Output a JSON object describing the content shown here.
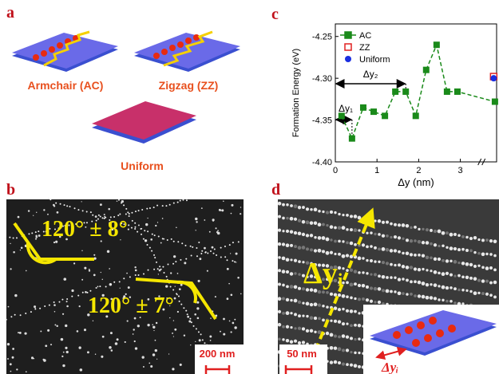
{
  "panels": {
    "a": {
      "label": "a",
      "items": [
        "Armchair (AC)",
        "Zigzag (ZZ)",
        "Uniform"
      ]
    },
    "b": {
      "label": "b",
      "angles": [
        "120° ± 8°",
        "120° ± 7°"
      ],
      "scale_bar": "200 nm"
    },
    "c": {
      "label": "c"
    },
    "d": {
      "label": "d",
      "spacing_main": "Δyᵢ",
      "scale_bar": "50 nm",
      "spacing_inset": "Δyᵢ"
    }
  },
  "chart_data": {
    "type": "line",
    "ylabel": "Formation Energy (eV)",
    "xlabel": "Δy (nm)",
    "xlim": [
      0,
      3.87
    ],
    "ylim": [
      -4.4,
      -4.235
    ],
    "xticks": [
      0,
      1,
      2,
      3
    ],
    "yticks": [
      {
        "value": -4.4,
        "label": "-4.40"
      },
      -4.35,
      {
        "value": -4.3,
        "label": "-4.30"
      },
      -4.25
    ],
    "annotations": [
      "Δy₁",
      "Δy₂"
    ],
    "series": [
      {
        "name": "AC",
        "color": "#1a8a1a",
        "marker": "square",
        "x": [
          0.15,
          0.4,
          0.67,
          0.92,
          1.19,
          1.44,
          1.69,
          1.93,
          2.18,
          2.43,
          2.68,
          2.93,
          3.83
        ],
        "values": [
          -4.345,
          -4.372,
          -4.335,
          -4.34,
          -4.345,
          -4.316,
          -4.316,
          -4.345,
          -4.29,
          -4.26,
          -4.316,
          -4.316,
          -4.328
        ]
      },
      {
        "name": "ZZ",
        "color": "#e02020",
        "marker": "open-square",
        "x": [
          3.8
        ],
        "values": [
          -4.298
        ]
      },
      {
        "name": "Uniform",
        "color": "#1a2ee0",
        "marker": "circle",
        "x": [
          3.8
        ],
        "values": [
          -4.3
        ]
      }
    ]
  }
}
